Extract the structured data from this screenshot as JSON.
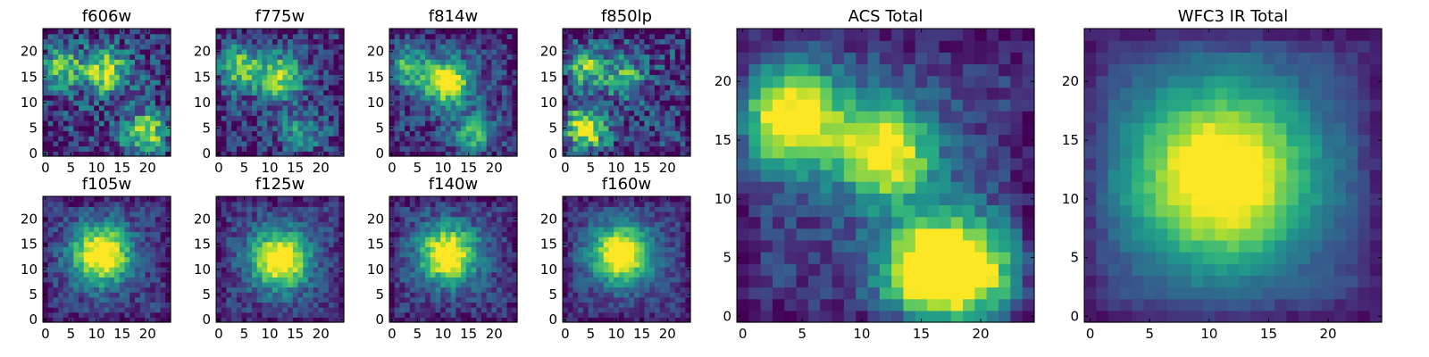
{
  "chart_data": [
    {
      "type": "heatmap",
      "title": "f606w",
      "peaks": [
        [
          12,
          16,
          0.75
        ],
        [
          20,
          4,
          0.7
        ],
        [
          3,
          17,
          0.6
        ]
      ],
      "noise": 0.55,
      "xticks": [
        0,
        5,
        10,
        15,
        20
      ],
      "yticks": [
        0,
        5,
        10,
        15,
        20
      ],
      "xlim": [
        0,
        24
      ],
      "ylim": [
        0,
        24
      ],
      "colormap": "viridis"
    },
    {
      "type": "heatmap",
      "title": "f775w",
      "peaks": [
        [
          12,
          15,
          0.7
        ],
        [
          4,
          17,
          0.6
        ],
        [
          16,
          4,
          0.35
        ]
      ],
      "noise": 0.45,
      "xticks": [
        0,
        5,
        10,
        15,
        20
      ],
      "yticks": [
        0,
        5,
        10,
        15,
        20
      ],
      "xlim": [
        0,
        24
      ],
      "ylim": [
        0,
        24
      ],
      "colormap": "viridis"
    },
    {
      "type": "heatmap",
      "title": "f814w",
      "peaks": [
        [
          11,
          14,
          0.95
        ],
        [
          3,
          17,
          0.5
        ],
        [
          16,
          4,
          0.45
        ]
      ],
      "noise": 0.4,
      "xticks": [
        0,
        5,
        10,
        15,
        20
      ],
      "yticks": [
        0,
        5,
        10,
        15,
        20
      ],
      "xlim": [
        0,
        24
      ],
      "ylim": [
        0,
        24
      ],
      "colormap": "viridis"
    },
    {
      "type": "heatmap",
      "title": "f850lp",
      "peaks": [
        [
          4,
          5,
          0.8
        ],
        [
          4,
          17,
          0.55
        ],
        [
          12,
          15,
          0.45
        ]
      ],
      "noise": 0.55,
      "xticks": [
        0,
        5,
        10,
        15,
        20
      ],
      "yticks": [
        0,
        5,
        10,
        15,
        20
      ],
      "xlim": [
        0,
        24
      ],
      "ylim": [
        0,
        24
      ],
      "colormap": "viridis"
    },
    {
      "type": "heatmap",
      "title": "f105w",
      "peaks": [
        [
          11,
          13,
          1.0
        ]
      ],
      "noise": 0.3,
      "xticks": [
        0,
        5,
        10,
        15,
        20
      ],
      "yticks": [
        0,
        5,
        10,
        15,
        20
      ],
      "xlim": [
        0,
        24
      ],
      "ylim": [
        0,
        24
      ],
      "colormap": "viridis"
    },
    {
      "type": "heatmap",
      "title": "f125w",
      "peaks": [
        [
          12,
          12,
          1.0
        ]
      ],
      "noise": 0.3,
      "xticks": [
        0,
        5,
        10,
        15,
        20
      ],
      "yticks": [
        0,
        5,
        10,
        15,
        20
      ],
      "xlim": [
        0,
        24
      ],
      "ylim": [
        0,
        24
      ],
      "colormap": "viridis"
    },
    {
      "type": "heatmap",
      "title": "f140w",
      "peaks": [
        [
          11,
          13,
          0.95
        ]
      ],
      "noise": 0.3,
      "xticks": [
        0,
        5,
        10,
        15,
        20
      ],
      "yticks": [
        0,
        5,
        10,
        15,
        20
      ],
      "xlim": [
        0,
        24
      ],
      "ylim": [
        0,
        24
      ],
      "colormap": "viridis"
    },
    {
      "type": "heatmap",
      "title": "f160w",
      "peaks": [
        [
          11,
          13,
          1.0
        ]
      ],
      "noise": 0.25,
      "xticks": [
        0,
        5,
        10,
        15,
        20
      ],
      "yticks": [
        0,
        5,
        10,
        15,
        20
      ],
      "xlim": [
        0,
        24
      ],
      "ylim": [
        0,
        24
      ],
      "colormap": "viridis"
    },
    {
      "type": "heatmap",
      "title": "ACS Total",
      "peaks": [
        [
          12,
          14,
          0.9
        ],
        [
          4,
          17,
          0.95
        ],
        [
          16,
          4,
          1.0
        ],
        [
          19,
          4,
          0.6
        ]
      ],
      "noise": 0.25,
      "xticks": [
        0,
        5,
        10,
        15,
        20
      ],
      "yticks": [
        0,
        5,
        10,
        15,
        20
      ],
      "xlim": [
        0,
        24
      ],
      "ylim": [
        0,
        24
      ],
      "colormap": "viridis"
    },
    {
      "type": "heatmap",
      "title": "WFC3 IR Total",
      "peaks": [
        [
          11,
          12,
          1.0
        ]
      ],
      "noise": 0.1,
      "xticks": [
        0,
        5,
        10,
        15,
        20
      ],
      "yticks": [
        0,
        5,
        10,
        15,
        20
      ],
      "xlim": [
        0,
        24
      ],
      "ylim": [
        0,
        24
      ],
      "colormap": "viridis"
    }
  ]
}
